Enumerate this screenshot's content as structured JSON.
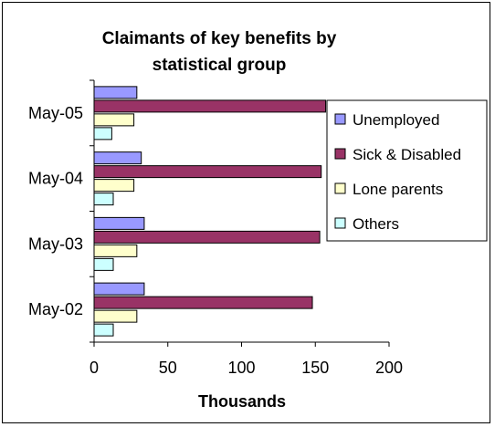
{
  "chart_data": {
    "type": "bar",
    "orientation": "horizontal",
    "title": "Claimants of key benefits by statistical group",
    "title_lines": [
      "Claimants of key benefits by",
      "statistical group"
    ],
    "xlabel": "Thousands",
    "ylabel": "",
    "xlim": [
      0,
      200
    ],
    "x_ticks": [
      0,
      50,
      100,
      150,
      200
    ],
    "categories": [
      "May-05",
      "May-04",
      "May-03",
      "May-02"
    ],
    "series": [
      {
        "name": "Unemployed",
        "color": "#9999ff",
        "values": [
          29,
          32,
          34,
          34
        ]
      },
      {
        "name": "Sick & Disabled",
        "color": "#993366",
        "values": [
          157,
          154,
          153,
          148
        ]
      },
      {
        "name": "Lone parents",
        "color": "#ffffcc",
        "values": [
          27,
          27,
          29,
          29
        ]
      },
      {
        "name": "Others",
        "color": "#ccffff",
        "values": [
          12,
          13,
          13,
          13
        ]
      }
    ],
    "grid": false,
    "legend_position": "right"
  }
}
